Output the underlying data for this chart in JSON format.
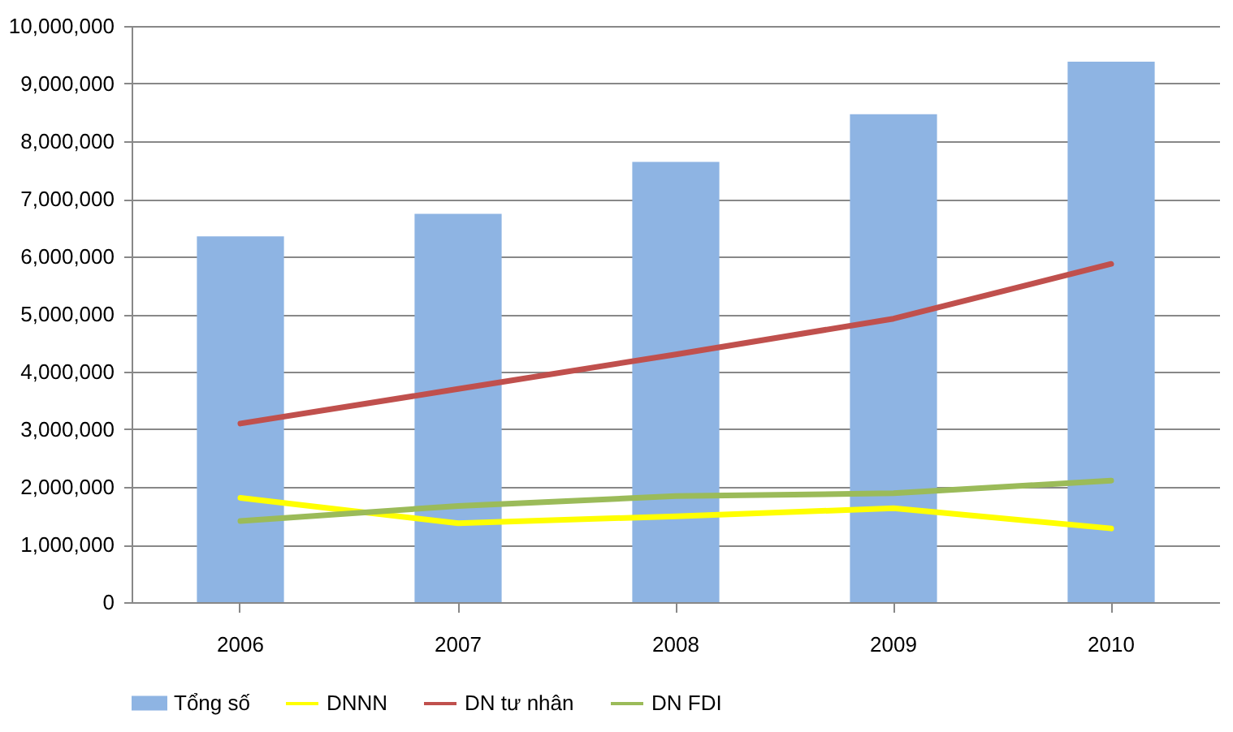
{
  "chart_data": {
    "type": "bar",
    "categories": [
      "2006",
      "2007",
      "2008",
      "2009",
      "2010"
    ],
    "series": [
      {
        "name": "Tổng số",
        "type": "bar",
        "color": "#8eb4e3",
        "values": [
          6350000,
          6740000,
          7640000,
          8470000,
          9380000
        ]
      },
      {
        "name": "DNNN",
        "type": "line",
        "color": "#ffff00",
        "values": [
          1810000,
          1370000,
          1490000,
          1630000,
          1280000
        ]
      },
      {
        "name": "DN tư nhân",
        "type": "line",
        "color": "#c0504d",
        "values": [
          3100000,
          3700000,
          4300000,
          4920000,
          5870000
        ]
      },
      {
        "name": "DN FDI",
        "type": "line",
        "color": "#9bbb59",
        "values": [
          1410000,
          1670000,
          1840000,
          1890000,
          2110000
        ]
      }
    ],
    "ylim": [
      0,
      10000000
    ],
    "yticks": [
      0,
      {
        "value": 1000000,
        "label": "1,000,000"
      },
      {
        "value": 2000000,
        "label": "2,000,000"
      },
      {
        "value": 3000000,
        "label": "3,000,000"
      },
      {
        "value": 4000000,
        "label": "4,000,000"
      },
      {
        "value": 5000000,
        "label": "5,000,000"
      },
      {
        "value": 6000000,
        "label": "6,000,000"
      },
      {
        "value": 7000000,
        "label": "7,000,000"
      },
      {
        "value": 8000000,
        "label": "8,000,000"
      },
      {
        "value": 9000000,
        "label": "9,000,000"
      },
      {
        "value": 10000000,
        "label": "10,000,000"
      }
    ],
    "grid": "y",
    "legend": "bottom"
  }
}
